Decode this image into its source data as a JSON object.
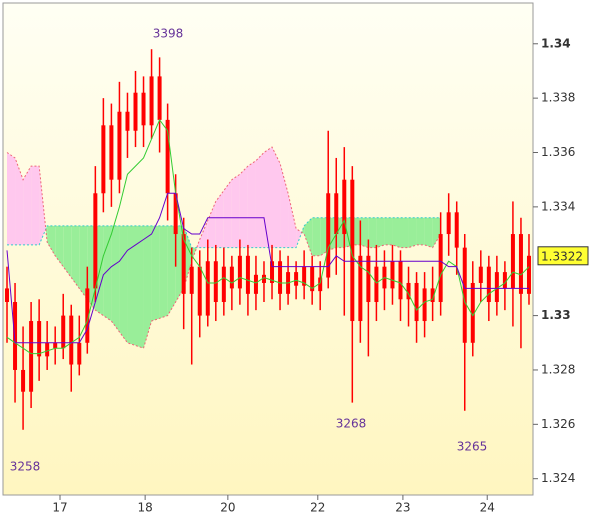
{
  "chart_data": {
    "type": "candlestick",
    "candle_color": "#ff0000",
    "annotations": [
      "3398",
      "3258",
      "3268",
      "3265"
    ],
    "open": [
      1.331,
      1.3305,
      1.328,
      1.3272,
      1.3298,
      1.3285,
      1.329,
      1.3288,
      1.33,
      1.3282,
      1.329,
      1.331,
      1.3345,
      1.337,
      1.335,
      1.3375,
      1.3368,
      1.3382,
      1.337,
      1.3388,
      1.3372,
      1.3345,
      1.333,
      1.3308,
      1.3318,
      1.33,
      1.332,
      1.3305,
      1.3318,
      1.331,
      1.3322,
      1.3308,
      1.3315,
      1.3312,
      1.332,
      1.3308,
      1.3316,
      1.3311,
      1.3318,
      1.3309,
      1.3314,
      1.3345,
      1.333,
      1.335,
      1.3298,
      1.3322,
      1.3305,
      1.3318,
      1.331,
      1.332,
      1.3306,
      1.3312,
      1.3298,
      1.331,
      1.3305,
      1.333,
      1.3338,
      1.3325,
      1.329,
      1.3312,
      1.3318,
      1.3305,
      1.3316,
      1.331,
      1.333,
      1.3308
    ],
    "high": [
      1.3318,
      1.3312,
      1.3296,
      1.3305,
      1.3306,
      1.3298,
      1.3296,
      1.3308,
      1.3304,
      1.33,
      1.3318,
      1.3355,
      1.338,
      1.3378,
      1.3386,
      1.3382,
      1.339,
      1.3388,
      1.3398,
      1.3395,
      1.3378,
      1.3352,
      1.3336,
      1.3325,
      1.3324,
      1.3328,
      1.3326,
      1.3325,
      1.3322,
      1.3328,
      1.3326,
      1.3322,
      1.332,
      1.3326,
      1.3324,
      1.3322,
      1.332,
      1.3324,
      1.3322,
      1.332,
      1.3368,
      1.3358,
      1.3362,
      1.3355,
      1.3335,
      1.3328,
      1.3326,
      1.3324,
      1.3326,
      1.3324,
      1.3318,
      1.3316,
      1.3316,
      1.3318,
      1.3338,
      1.3345,
      1.3342,
      1.333,
      1.332,
      1.3324,
      1.3322,
      1.3322,
      1.332,
      1.3342,
      1.3336,
      1.333
    ],
    "low": [
      1.329,
      1.3268,
      1.3258,
      1.3266,
      1.3276,
      1.328,
      1.3282,
      1.3284,
      1.3272,
      1.3278,
      1.3286,
      1.3305,
      1.3338,
      1.334,
      1.3345,
      1.3358,
      1.3362,
      1.3362,
      1.3365,
      1.336,
      1.3335,
      1.3318,
      1.3295,
      1.3282,
      1.3292,
      1.3296,
      1.3298,
      1.33,
      1.3302,
      1.3304,
      1.33,
      1.3302,
      1.3305,
      1.3306,
      1.3302,
      1.3304,
      1.3306,
      1.3306,
      1.3304,
      1.3302,
      1.331,
      1.3315,
      1.33,
      1.3268,
      1.329,
      1.3285,
      1.3298,
      1.3302,
      1.3304,
      1.3298,
      1.3296,
      1.329,
      1.3292,
      1.3298,
      1.33,
      1.3322,
      1.3315,
      1.3265,
      1.3285,
      1.3305,
      1.3298,
      1.33,
      1.3302,
      1.3296,
      1.3288,
      1.3304
    ],
    "close": [
      1.3305,
      1.328,
      1.3272,
      1.3298,
      1.3285,
      1.329,
      1.3288,
      1.33,
      1.3282,
      1.329,
      1.331,
      1.3345,
      1.337,
      1.335,
      1.3375,
      1.3368,
      1.3382,
      1.337,
      1.3388,
      1.3372,
      1.3345,
      1.333,
      1.3308,
      1.3318,
      1.33,
      1.332,
      1.3305,
      1.3318,
      1.331,
      1.3322,
      1.3308,
      1.3315,
      1.3312,
      1.332,
      1.3308,
      1.3316,
      1.3311,
      1.3318,
      1.3309,
      1.3314,
      1.3345,
      1.333,
      1.335,
      1.3298,
      1.3322,
      1.3305,
      1.3318,
      1.331,
      1.332,
      1.3306,
      1.3312,
      1.3298,
      1.331,
      1.3305,
      1.333,
      1.3338,
      1.3325,
      1.329,
      1.3312,
      1.3318,
      1.3305,
      1.3316,
      1.331,
      1.333,
      1.3308,
      1.3322
    ],
    "cloud": {
      "up_color": "#99ee99",
      "down_color": "#ffc8ee",
      "span_a": {
        "color": "#33cccc",
        "values": [
          1.3326,
          1.3326,
          1.3326,
          1.3326,
          1.3326,
          1.3333,
          1.3333,
          1.3333,
          1.3333,
          1.3333,
          1.3333,
          1.3333,
          1.3333,
          1.3333,
          1.3333,
          1.3333,
          1.3333,
          1.3333,
          1.3333,
          1.3333,
          1.3333,
          1.3333,
          1.3333,
          1.3325,
          1.3325,
          1.3325,
          1.3325,
          1.3325,
          1.3325,
          1.3325,
          1.3325,
          1.3325,
          1.3325,
          1.3325,
          1.3325,
          1.3325,
          1.3325,
          1.3333,
          1.3336,
          1.3336,
          1.3336,
          1.3336,
          1.3336,
          1.3336,
          1.3336,
          1.3336,
          1.3336,
          1.3336,
          1.3336,
          1.3336,
          1.3336,
          1.3336,
          1.3336,
          1.3336,
          1.3336,
          null,
          null,
          null,
          null,
          null,
          null,
          null,
          null,
          null,
          null,
          null
        ]
      },
      "span_b": {
        "color": "#ee6677",
        "values": [
          1.336,
          1.3358,
          1.335,
          1.3355,
          1.3355,
          1.3327,
          1.3322,
          1.3318,
          1.3314,
          1.331,
          1.3306,
          1.3302,
          1.33,
          1.3298,
          1.3294,
          1.329,
          1.3289,
          1.3288,
          1.3298,
          1.3299,
          1.33,
          1.3305,
          1.331,
          1.332,
          1.3328,
          1.3335,
          1.3342,
          1.3346,
          1.335,
          1.3352,
          1.3355,
          1.3357,
          1.336,
          1.3362,
          1.3356,
          1.3345,
          1.3332,
          1.333,
          1.3322,
          1.3322,
          1.3324,
          1.3325,
          1.3325,
          1.3326,
          1.3326,
          1.3325,
          1.3325,
          1.3326,
          1.3326,
          1.3325,
          1.3325,
          1.3326,
          1.3326,
          1.3325,
          1.333,
          null,
          null,
          null,
          null,
          null,
          null,
          null,
          null,
          null,
          null,
          null
        ]
      }
    },
    "lines": [
      {
        "color": "#33cc33",
        "values": [
          1.3292,
          1.329,
          1.3288,
          1.3286,
          1.3286,
          1.3287,
          1.3288,
          1.3288,
          1.329,
          1.3292,
          1.3298,
          1.331,
          1.3322,
          1.333,
          1.334,
          1.3352,
          1.3355,
          1.3358,
          1.3365,
          1.3372,
          1.3368,
          1.3345,
          1.3328,
          1.3322,
          1.3318,
          1.3312,
          1.3312,
          1.3314,
          1.3312,
          1.3314,
          1.3313,
          1.3312,
          1.3314,
          1.3313,
          1.3312,
          1.3312,
          1.3313,
          1.3312,
          1.331,
          1.3312,
          1.3325,
          1.333,
          1.3335,
          1.3322,
          1.3318,
          1.3316,
          1.3312,
          1.3314,
          1.3313,
          1.3312,
          1.3308,
          1.3302,
          1.3305,
          1.3306,
          1.3315,
          1.332,
          1.3318,
          1.3305,
          1.33,
          1.3305,
          1.3308,
          1.331,
          1.3312,
          1.3316,
          1.3315,
          1.3318
        ]
      },
      {
        "color": "#6600cc",
        "values": [
          1.3324,
          1.329,
          1.329,
          1.329,
          1.329,
          1.329,
          1.329,
          1.329,
          1.329,
          1.329,
          1.3295,
          1.3305,
          1.3315,
          1.3318,
          1.332,
          1.3324,
          1.3326,
          1.3328,
          1.333,
          1.3336,
          1.3345,
          1.3345,
          1.3332,
          1.333,
          1.333,
          1.3336,
          1.3336,
          1.3336,
          1.3336,
          1.3336,
          1.3336,
          1.3336,
          1.3336,
          1.3318,
          1.3318,
          1.3318,
          1.3318,
          1.3318,
          1.3318,
          1.3318,
          1.3318,
          1.3322,
          1.332,
          1.332,
          1.332,
          1.332,
          1.332,
          1.332,
          1.332,
          1.332,
          1.332,
          1.332,
          1.332,
          1.332,
          1.332,
          1.3318,
          1.3318,
          1.331,
          1.331,
          1.331,
          1.331,
          1.331,
          1.331,
          1.331,
          1.331,
          1.331
        ]
      }
    ],
    "xlim": [
      -0.5,
      65.5
    ],
    "xticks": [
      {
        "value": 6.6,
        "label": "17"
      },
      {
        "value": 17.2,
        "label": "18"
      },
      {
        "value": 27.5,
        "label": "20"
      },
      {
        "value": 38.7,
        "label": "22"
      },
      {
        "value": 49.3,
        "label": "23"
      },
      {
        "value": 59.8,
        "label": "24"
      }
    ],
    "ylim": [
      1.3234,
      1.3415
    ],
    "yticks": [
      1.324,
      1.326,
      1.328,
      1.33,
      1.334,
      1.336,
      1.338,
      1.34
    ],
    "last_price": 1.3322,
    "last_price_color": "#ffff33"
  }
}
